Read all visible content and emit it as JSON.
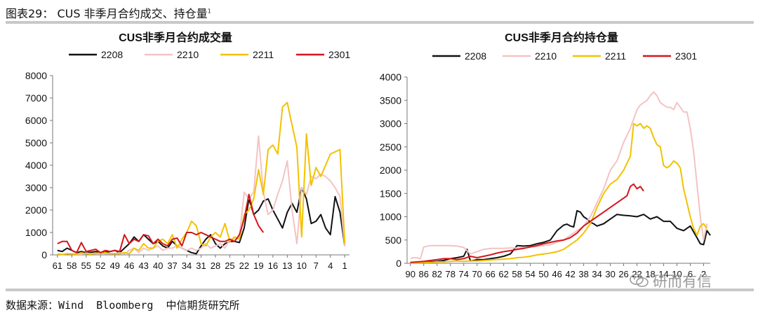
{
  "header": {
    "title": "图表29： CUS 非季月合约成交、持仓量",
    "footnote_mark": "1"
  },
  "footer": {
    "source": "数据来源：Wind  Bloomberg  中信期货研究所"
  },
  "watermark": {
    "text": "研而有信",
    "icon": "wechat-icon"
  },
  "chart_data": [
    {
      "type": "line",
      "title": "CUS非季月合约成交量",
      "ylim": [
        0,
        8000
      ],
      "yticks": [
        0,
        1000,
        2000,
        3000,
        4000,
        5000,
        6000,
        7000,
        8000
      ],
      "x_reversed": true,
      "xlim": [
        62,
        0
      ],
      "xticks": [
        61,
        58,
        55,
        52,
        49,
        46,
        43,
        40,
        37,
        34,
        31,
        28,
        25,
        22,
        19,
        16,
        13,
        10,
        7,
        4,
        1
      ],
      "legend_position": "top",
      "series": [
        {
          "name": "2208",
          "color": "#111111",
          "x": [
            61,
            60,
            59,
            58,
            57,
            56,
            55,
            54,
            53,
            52,
            51,
            50,
            49,
            48,
            47,
            46,
            45,
            44,
            43,
            42,
            41,
            40,
            39,
            38,
            37,
            36,
            35,
            34,
            33,
            32,
            31,
            30,
            29,
            28,
            27,
            26,
            25,
            24,
            23,
            22,
            21,
            20,
            19,
            18,
            17,
            16,
            15,
            14,
            13,
            12,
            11,
            10,
            9,
            8,
            7,
            6,
            5,
            4,
            3,
            2,
            1
          ],
          "values": [
            200,
            150,
            300,
            200,
            100,
            150,
            100,
            120,
            150,
            100,
            120,
            150,
            200,
            100,
            300,
            500,
            800,
            600,
            900,
            700,
            500,
            600,
            400,
            300,
            600,
            400,
            300,
            200,
            100,
            50,
            400,
            700,
            900,
            500,
            300,
            500,
            600,
            600,
            550,
            1200,
            2500,
            1800,
            2000,
            2400,
            2500,
            2000,
            1600,
            1200,
            1900,
            2300,
            1900,
            3000,
            2500,
            1400,
            1500,
            1800,
            1200,
            900,
            2600,
            1900,
            400
          ]
        },
        {
          "name": "2210",
          "color": "#f4c3c3",
          "x": [
            61,
            60,
            59,
            58,
            57,
            56,
            55,
            54,
            53,
            52,
            51,
            50,
            49,
            48,
            47,
            46,
            45,
            44,
            43,
            42,
            41,
            40,
            39,
            38,
            37,
            36,
            35,
            34,
            33,
            32,
            31,
            30,
            29,
            28,
            27,
            26,
            25,
            24,
            23,
            22,
            21,
            20,
            19,
            18,
            17,
            16,
            15,
            14,
            13,
            12,
            11,
            10,
            9,
            8,
            7,
            6,
            5,
            4,
            3,
            2,
            1
          ],
          "values": [
            50,
            20,
            50,
            50,
            30,
            30,
            80,
            50,
            50,
            100,
            50,
            50,
            50,
            100,
            50,
            200,
            300,
            100,
            300,
            200,
            300,
            400,
            200,
            300,
            300,
            400,
            300,
            200,
            300,
            200,
            300,
            500,
            300,
            400,
            500,
            300,
            700,
            700,
            800,
            2800,
            2500,
            2800,
            5300,
            2800,
            1800,
            2000,
            2700,
            3300,
            4200,
            2000,
            500,
            3000,
            2700,
            3500,
            3400,
            3600,
            3500,
            3300,
            3000,
            2600,
            400
          ]
        },
        {
          "name": "2211",
          "color": "#f2c200",
          "x": [
            61,
            60,
            59,
            58,
            57,
            56,
            55,
            54,
            53,
            52,
            51,
            50,
            49,
            48,
            47,
            46,
            45,
            44,
            43,
            42,
            41,
            40,
            39,
            38,
            37,
            36,
            35,
            34,
            33,
            32,
            31,
            30,
            29,
            28,
            27,
            26,
            25,
            24,
            23,
            22,
            21,
            20,
            19,
            18,
            17,
            16,
            15,
            14,
            13,
            12,
            11,
            10,
            9,
            8,
            7,
            6,
            5,
            4,
            3,
            2,
            1
          ],
          "values": [
            30,
            20,
            50,
            40,
            30,
            100,
            50,
            30,
            80,
            60,
            100,
            60,
            50,
            50,
            100,
            50,
            300,
            200,
            500,
            300,
            300,
            600,
            700,
            500,
            900,
            300,
            700,
            1000,
            1500,
            1300,
            500,
            400,
            800,
            1000,
            800,
            1400,
            600,
            800,
            700,
            1800,
            2000,
            2500,
            3800,
            2700,
            4700,
            4900,
            4500,
            6600,
            6800,
            5800,
            4800,
            800,
            5400,
            3100,
            3900,
            3500,
            4000,
            4500,
            4600,
            4700,
            500
          ]
        },
        {
          "name": "2301",
          "color": "#d4161c",
          "x": [
            61,
            60,
            59,
            58,
            57,
            56,
            55,
            54,
            53,
            52,
            51,
            50,
            49,
            48,
            47,
            46,
            45,
            44,
            43,
            42,
            41,
            40,
            39,
            38,
            37,
            36,
            35,
            34,
            33,
            32,
            31,
            30,
            29,
            28,
            27,
            26,
            25,
            24,
            23,
            22,
            21,
            20,
            19,
            18
          ],
          "values": [
            500,
            600,
            600,
            200,
            100,
            550,
            150,
            200,
            250,
            100,
            200,
            150,
            200,
            150,
            900,
            500,
            700,
            600,
            900,
            850,
            500,
            700,
            500,
            400,
            700,
            750,
            400,
            1000,
            1000,
            900,
            1000,
            900,
            800,
            700,
            600,
            600,
            700,
            600,
            900,
            1600,
            2700,
            1800,
            1300,
            1000
          ]
        }
      ]
    },
    {
      "type": "line",
      "title": "CUS非季月合约持仓量",
      "ylim": [
        0,
        4000
      ],
      "yticks": [
        0,
        500,
        1000,
        1500,
        2000,
        2500,
        3000,
        3500,
        4000
      ],
      "x_reversed": true,
      "xlim": [
        91,
        0
      ],
      "xticks": [
        90,
        86,
        82,
        78,
        74,
        70,
        66,
        62,
        58,
        54,
        50,
        46,
        42,
        38,
        34,
        30,
        26,
        22,
        18,
        14,
        10,
        6,
        2
      ],
      "legend_position": "top",
      "series": [
        {
          "name": "2208",
          "color": "#111111",
          "x": [
            90,
            88,
            86,
            84,
            82,
            80,
            78,
            76,
            74,
            73,
            72,
            71,
            70,
            68,
            66,
            64,
            62,
            60,
            58,
            56,
            54,
            52,
            50,
            48,
            46,
            44,
            43,
            42,
            41,
            40,
            39,
            38,
            37,
            36,
            35,
            34,
            32,
            30,
            28,
            26,
            24,
            22,
            20,
            18,
            16,
            14,
            12,
            10,
            8,
            6,
            4,
            3,
            2,
            1,
            0
          ],
          "values": [
            20,
            20,
            25,
            30,
            40,
            60,
            100,
            120,
            150,
            300,
            50,
            60,
            80,
            80,
            100,
            120,
            150,
            200,
            380,
            370,
            380,
            420,
            450,
            500,
            700,
            820,
            840,
            800,
            780,
            1130,
            1100,
            1000,
            950,
            880,
            850,
            800,
            850,
            950,
            1050,
            1030,
            1020,
            1000,
            1050,
            950,
            1000,
            900,
            900,
            750,
            700,
            800,
            550,
            420,
            400,
            700,
            600
          ]
        },
        {
          "name": "2210",
          "color": "#f4c3c3",
          "x": [
            90,
            89,
            88,
            87,
            86,
            84,
            82,
            80,
            78,
            76,
            74,
            72,
            70,
            68,
            66,
            64,
            62,
            60,
            58,
            56,
            54,
            52,
            50,
            48,
            46,
            44,
            42,
            40,
            38,
            36,
            34,
            32,
            30,
            28,
            26,
            24,
            22,
            21,
            20,
            19,
            18,
            17,
            16,
            15,
            14,
            13,
            12,
            11,
            10,
            9,
            8,
            7,
            6,
            5,
            4,
            3,
            2,
            1
          ],
          "values": [
            100,
            120,
            120,
            100,
            350,
            380,
            380,
            380,
            380,
            370,
            340,
            200,
            250,
            300,
            320,
            320,
            320,
            330,
            330,
            340,
            350,
            360,
            380,
            400,
            450,
            500,
            600,
            700,
            800,
            1000,
            1300,
            1600,
            2000,
            2200,
            2600,
            2900,
            3300,
            3400,
            3450,
            3500,
            3600,
            3680,
            3600,
            3450,
            3400,
            3350,
            3350,
            3300,
            3450,
            3350,
            3250,
            3250,
            2900,
            2400,
            1700,
            1000,
            500,
            850
          ]
        },
        {
          "name": "2211",
          "color": "#f2c200",
          "x": [
            90,
            88,
            86,
            84,
            82,
            80,
            78,
            76,
            74,
            72,
            70,
            68,
            66,
            64,
            62,
            60,
            58,
            56,
            54,
            52,
            50,
            48,
            46,
            44,
            42,
            40,
            38,
            36,
            34,
            32,
            30,
            28,
            26,
            24,
            23,
            22,
            21,
            20,
            19,
            18,
            17,
            16,
            15,
            14,
            13,
            12,
            11,
            10,
            9,
            8,
            7,
            6,
            5,
            4,
            3,
            2,
            1
          ],
          "values": [
            10,
            15,
            20,
            20,
            30,
            30,
            40,
            50,
            40,
            50,
            50,
            60,
            70,
            80,
            90,
            100,
            120,
            130,
            150,
            180,
            200,
            220,
            250,
            300,
            400,
            500,
            650,
            850,
            1200,
            1500,
            1700,
            1800,
            2000,
            2300,
            3000,
            2950,
            3000,
            2900,
            2950,
            2900,
            2700,
            2550,
            2500,
            2100,
            2050,
            2100,
            2200,
            2150,
            2050,
            1600,
            1300,
            1000,
            750,
            600,
            800,
            850,
            750
          ]
        },
        {
          "name": "2301",
          "color": "#d4161c",
          "x": [
            90,
            88,
            86,
            84,
            82,
            80,
            78,
            76,
            74,
            72,
            70,
            68,
            66,
            64,
            62,
            60,
            58,
            56,
            54,
            52,
            50,
            48,
            46,
            44,
            42,
            40,
            38,
            36,
            34,
            32,
            30,
            28,
            26,
            25,
            24,
            23,
            22,
            21,
            20
          ],
          "values": [
            20,
            30,
            40,
            60,
            80,
            100,
            100,
            80,
            100,
            150,
            120,
            150,
            180,
            220,
            250,
            270,
            300,
            320,
            350,
            380,
            420,
            450,
            480,
            500,
            550,
            650,
            800,
            900,
            1000,
            1100,
            1200,
            1300,
            1400,
            1450,
            1650,
            1700,
            1600,
            1650,
            1550
          ]
        }
      ]
    }
  ]
}
